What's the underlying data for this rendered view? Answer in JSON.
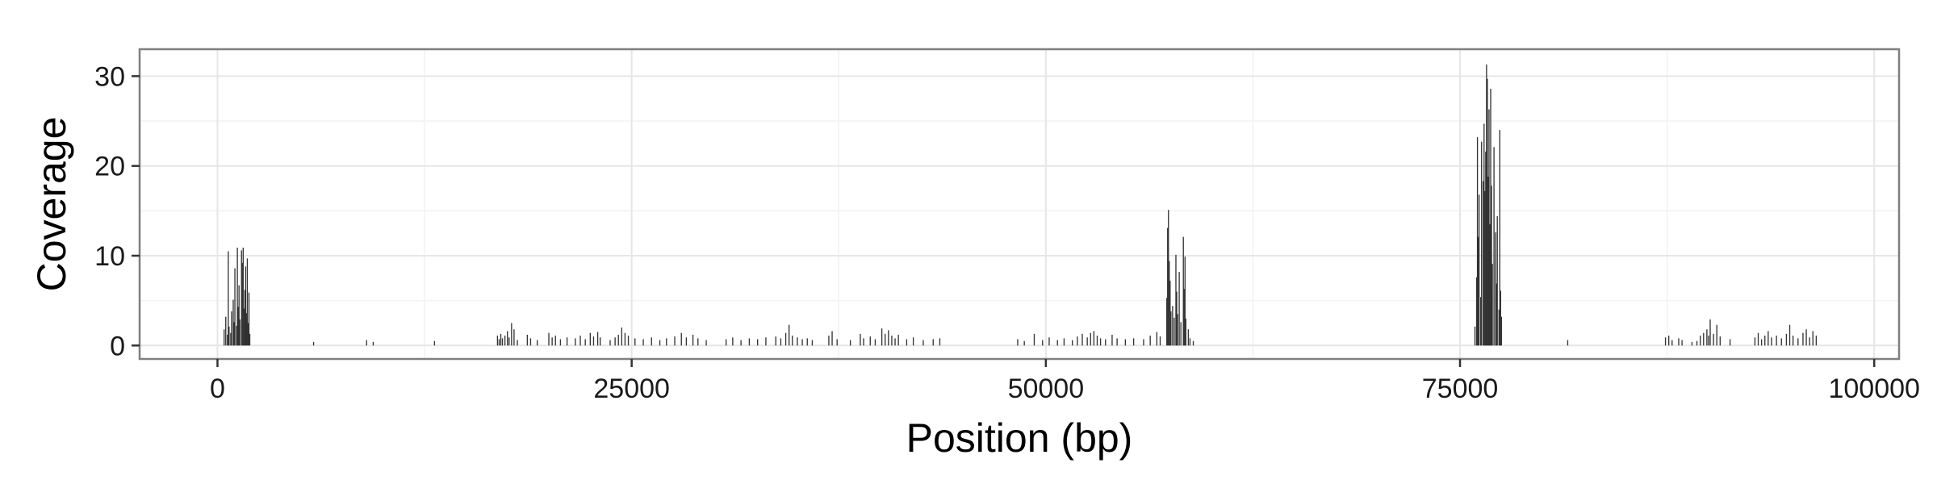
{
  "chart_data": {
    "type": "bar",
    "title": "",
    "xlabel": "Position (bp)",
    "ylabel": "Coverage",
    "xlim": [
      -4700,
      101500
    ],
    "ylim": [
      -1.5,
      33
    ],
    "x_ticks": [
      0,
      25000,
      50000,
      75000,
      100000
    ],
    "x_tick_labels": [
      "0",
      "25000",
      "50000",
      "75000",
      "100000"
    ],
    "y_ticks": [
      0,
      10,
      20,
      30
    ],
    "y_tick_labels": [
      "0",
      "10",
      "20",
      "30"
    ],
    "grid": true,
    "legend": "none",
    "colors": {
      "bar": "#333333",
      "panel_border": "#7f7f7f",
      "grid_major": "#e6e6e6",
      "grid_minor": "#f2f2f2"
    },
    "bin_width_bp": 50,
    "points": [
      [
        400,
        1.8
      ],
      [
        500,
        3.2
      ],
      [
        600,
        1.2
      ],
      [
        650,
        10.5
      ],
      [
        700,
        2.1
      ],
      [
        800,
        1.4
      ],
      [
        850,
        3.8
      ],
      [
        950,
        5.1
      ],
      [
        1000,
        2.6
      ],
      [
        1050,
        8.6
      ],
      [
        1150,
        2.2
      ],
      [
        1200,
        10.9
      ],
      [
        1250,
        4.3
      ],
      [
        1300,
        6.7
      ],
      [
        1350,
        2.9
      ],
      [
        1450,
        10.6
      ],
      [
        1500,
        9.2
      ],
      [
        1550,
        10.9
      ],
      [
        1600,
        4.1
      ],
      [
        1650,
        6.2
      ],
      [
        1700,
        8.8
      ],
      [
        1750,
        3.6
      ],
      [
        1800,
        9.7
      ],
      [
        1850,
        2.5
      ],
      [
        1900,
        5.9
      ],
      [
        1950,
        1.3
      ],
      [
        5800,
        0.4
      ],
      [
        9000,
        0.6
      ],
      [
        9400,
        0.4
      ],
      [
        13100,
        0.5
      ],
      [
        16900,
        1.1
      ],
      [
        17000,
        0.7
      ],
      [
        17100,
        1.3
      ],
      [
        17200,
        0.8
      ],
      [
        17350,
        1.1
      ],
      [
        17500,
        1.6
      ],
      [
        17600,
        0.9
      ],
      [
        17750,
        2.5
      ],
      [
        17900,
        1.8
      ],
      [
        18100,
        0.6
      ],
      [
        18700,
        1.2
      ],
      [
        18900,
        0.8
      ],
      [
        19300,
        0.6
      ],
      [
        20000,
        1.4
      ],
      [
        20200,
        0.9
      ],
      [
        20400,
        1.1
      ],
      [
        20700,
        0.7
      ],
      [
        21100,
        0.9
      ],
      [
        21600,
        0.8
      ],
      [
        21900,
        1.1
      ],
      [
        22200,
        0.7
      ],
      [
        22500,
        1.4
      ],
      [
        22700,
        1.0
      ],
      [
        22950,
        1.5
      ],
      [
        23100,
        0.9
      ],
      [
        23700,
        0.6
      ],
      [
        24000,
        0.9
      ],
      [
        24200,
        1.2
      ],
      [
        24400,
        2.0
      ],
      [
        24600,
        1.4
      ],
      [
        24800,
        1.1
      ],
      [
        25200,
        0.8
      ],
      [
        25700,
        0.7
      ],
      [
        26200,
        0.9
      ],
      [
        26700,
        0.6
      ],
      [
        27100,
        0.8
      ],
      [
        27600,
        1.0
      ],
      [
        28000,
        1.4
      ],
      [
        28300,
        0.9
      ],
      [
        28700,
        1.2
      ],
      [
        29000,
        0.8
      ],
      [
        29500,
        0.6
      ],
      [
        30700,
        0.7
      ],
      [
        31100,
        0.9
      ],
      [
        31600,
        0.6
      ],
      [
        32100,
        0.8
      ],
      [
        32600,
        0.7
      ],
      [
        33100,
        0.9
      ],
      [
        33700,
        1.0
      ],
      [
        34000,
        0.8
      ],
      [
        34300,
        1.4
      ],
      [
        34500,
        2.3
      ],
      [
        34700,
        1.1
      ],
      [
        35000,
        0.9
      ],
      [
        35300,
        0.7
      ],
      [
        35600,
        0.8
      ],
      [
        35900,
        0.6
      ],
      [
        36900,
        1.1
      ],
      [
        37100,
        1.6
      ],
      [
        37400,
        0.7
      ],
      [
        38200,
        0.6
      ],
      [
        38800,
        1.3
      ],
      [
        39000,
        0.8
      ],
      [
        39400,
        1.0
      ],
      [
        39700,
        0.7
      ],
      [
        40100,
        1.9
      ],
      [
        40300,
        1.3
      ],
      [
        40500,
        1.7
      ],
      [
        40700,
        1.1
      ],
      [
        40900,
        0.8
      ],
      [
        41100,
        1.2
      ],
      [
        41600,
        0.7
      ],
      [
        42000,
        0.9
      ],
      [
        42600,
        0.6
      ],
      [
        43200,
        0.7
      ],
      [
        43600,
        0.8
      ],
      [
        48300,
        0.7
      ],
      [
        48700,
        0.5
      ],
      [
        49300,
        1.3
      ],
      [
        49800,
        0.6
      ],
      [
        50200,
        0.9
      ],
      [
        50700,
        0.6
      ],
      [
        51100,
        0.8
      ],
      [
        51600,
        0.6
      ],
      [
        51900,
        1.0
      ],
      [
        52200,
        1.3
      ],
      [
        52500,
        0.9
      ],
      [
        52700,
        1.4
      ],
      [
        52900,
        1.6
      ],
      [
        53100,
        1.1
      ],
      [
        53300,
        0.8
      ],
      [
        53600,
        0.7
      ],
      [
        54000,
        1.2
      ],
      [
        54300,
        0.8
      ],
      [
        54800,
        0.7
      ],
      [
        55300,
        0.8
      ],
      [
        55900,
        0.7
      ],
      [
        56300,
        1.1
      ],
      [
        56700,
        1.5
      ],
      [
        56900,
        1.0
      ],
      [
        57300,
        5.3
      ],
      [
        57350,
        13.1
      ],
      [
        57400,
        15.1
      ],
      [
        57450,
        9.4
      ],
      [
        57500,
        7.2
      ],
      [
        57550,
        3.8
      ],
      [
        57650,
        4.4
      ],
      [
        57750,
        3.1
      ],
      [
        57850,
        10.1
      ],
      [
        57900,
        6.0
      ],
      [
        57950,
        3.5
      ],
      [
        58050,
        8.2
      ],
      [
        58150,
        2.6
      ],
      [
        58300,
        12.1
      ],
      [
        58350,
        6.3
      ],
      [
        58400,
        9.9
      ],
      [
        58450,
        3.0
      ],
      [
        58600,
        1.8
      ],
      [
        58700,
        0.8
      ],
      [
        58900,
        0.5
      ],
      [
        75900,
        2.1
      ],
      [
        76000,
        7.6
      ],
      [
        76050,
        23.2
      ],
      [
        76100,
        12.1
      ],
      [
        76150,
        16.8
      ],
      [
        76250,
        5.4
      ],
      [
        76300,
        22.7
      ],
      [
        76400,
        18.3
      ],
      [
        76450,
        24.7
      ],
      [
        76500,
        17.2
      ],
      [
        76550,
        21.6
      ],
      [
        76600,
        31.3
      ],
      [
        76650,
        29.7
      ],
      [
        76700,
        18.8
      ],
      [
        76750,
        26.3
      ],
      [
        76800,
        13.5
      ],
      [
        76850,
        28.6
      ],
      [
        76900,
        17.8
      ],
      [
        76950,
        9.1
      ],
      [
        77050,
        22.1
      ],
      [
        77150,
        12.6
      ],
      [
        77200,
        6.9
      ],
      [
        77250,
        14.4
      ],
      [
        77350,
        4.0
      ],
      [
        77400,
        24.0
      ],
      [
        77450,
        6.1
      ],
      [
        77500,
        3.2
      ],
      [
        81500,
        0.6
      ],
      [
        87400,
        0.9
      ],
      [
        87600,
        1.1
      ],
      [
        87800,
        0.6
      ],
      [
        88200,
        0.8
      ],
      [
        88400,
        0.6
      ],
      [
        89000,
        0.4
      ],
      [
        89300,
        0.5
      ],
      [
        89500,
        1.1
      ],
      [
        89700,
        1.4
      ],
      [
        89900,
        1.8
      ],
      [
        90000,
        1.1
      ],
      [
        90100,
        2.9
      ],
      [
        90300,
        1.3
      ],
      [
        90500,
        2.3
      ],
      [
        90700,
        1.0
      ],
      [
        91300,
        0.7
      ],
      [
        92800,
        0.9
      ],
      [
        93000,
        1.4
      ],
      [
        93200,
        0.7
      ],
      [
        93400,
        1.1
      ],
      [
        93600,
        1.6
      ],
      [
        93800,
        0.9
      ],
      [
        94100,
        1.1
      ],
      [
        94400,
        0.8
      ],
      [
        94700,
        1.3
      ],
      [
        94900,
        2.3
      ],
      [
        95100,
        1.1
      ],
      [
        95400,
        0.8
      ],
      [
        95700,
        1.4
      ],
      [
        95900,
        1.8
      ],
      [
        96100,
        0.9
      ],
      [
        96300,
        1.6
      ],
      [
        96500,
        1.1
      ]
    ]
  }
}
